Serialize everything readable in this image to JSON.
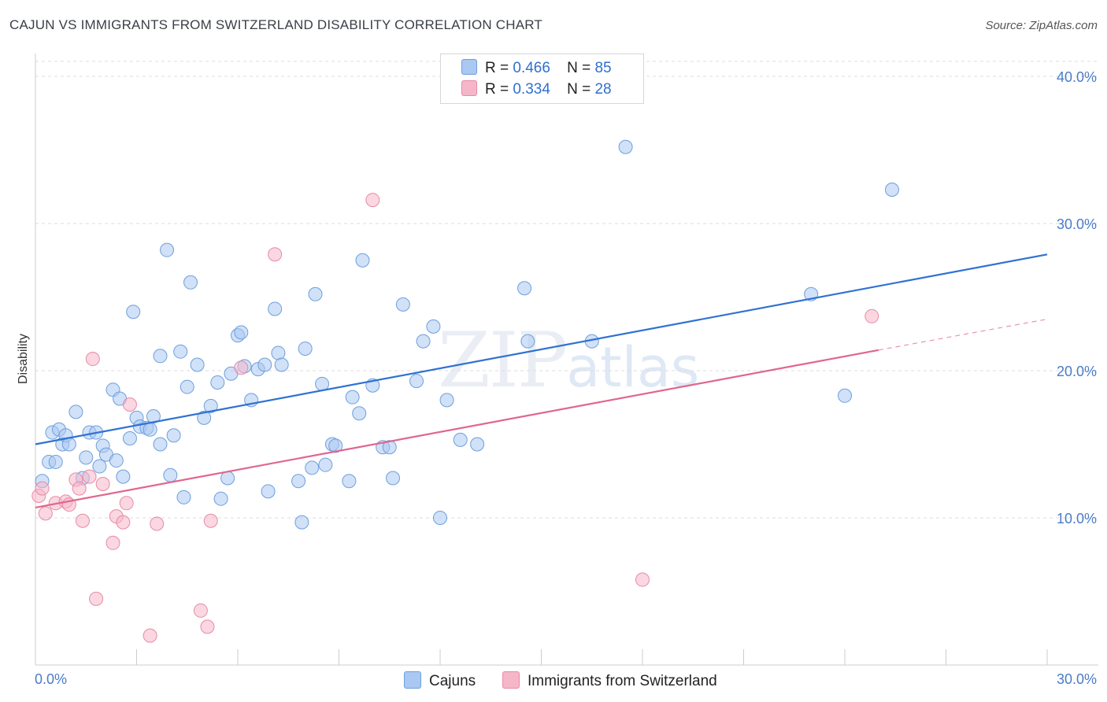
{
  "title": "CAJUN VS IMMIGRANTS FROM SWITZERLAND DISABILITY CORRELATION CHART",
  "source": "Source: ZipAtlas.com",
  "watermark": {
    "zip": "ZIP",
    "atlas": "atlas"
  },
  "legend": {
    "rows": [
      {
        "r_label": "R =",
        "r_value": "0.466",
        "n_label": "N =",
        "n_value": "85",
        "color": "#a9c8f2"
      },
      {
        "r_label": "R =",
        "r_value": "0.334",
        "n_label": "N =",
        "n_value": "28",
        "color": "#f6b6c9"
      }
    ]
  },
  "bottom_legend": [
    {
      "label": "Cajuns",
      "color": "#a9c8f2"
    },
    {
      "label": "Immigrants from Switzerland",
      "color": "#f6b6c9"
    }
  ],
  "chart_data": {
    "type": "scatter",
    "ylabel": "Disability",
    "xlabel": "",
    "xlim": [
      0,
      30
    ],
    "ylim": [
      0,
      40
    ],
    "x_tick_labels": [
      "0.0%",
      "30.0%"
    ],
    "y_ticks": [
      10,
      20,
      30,
      40
    ],
    "y_tick_labels": [
      "10.0%",
      "20.0%",
      "30.0%",
      "40.0%"
    ],
    "grid": "horizontal dashed",
    "series": [
      {
        "name": "Cajuns",
        "color": "#a9c8f2",
        "edge": "#6f9fdc",
        "trend_color": "#2f72d2",
        "trend": {
          "x0": 0,
          "y0": 15.0,
          "x1": 30,
          "y1": 27.9
        },
        "points": [
          [
            0.2,
            12.5
          ],
          [
            0.4,
            13.8
          ],
          [
            0.5,
            15.8
          ],
          [
            0.6,
            13.8
          ],
          [
            0.7,
            16.0
          ],
          [
            0.8,
            15.0
          ],
          [
            0.9,
            15.6
          ],
          [
            1.0,
            15.0
          ],
          [
            1.2,
            17.2
          ],
          [
            1.4,
            12.7
          ],
          [
            1.5,
            14.1
          ],
          [
            1.6,
            15.8
          ],
          [
            1.8,
            15.8
          ],
          [
            1.9,
            13.5
          ],
          [
            2.0,
            14.9
          ],
          [
            2.1,
            14.3
          ],
          [
            2.3,
            18.7
          ],
          [
            2.4,
            13.9
          ],
          [
            2.5,
            18.1
          ],
          [
            2.6,
            12.8
          ],
          [
            2.8,
            15.4
          ],
          [
            2.9,
            24.0
          ],
          [
            3.0,
            16.8
          ],
          [
            3.1,
            16.2
          ],
          [
            3.3,
            16.1
          ],
          [
            3.4,
            16.0
          ],
          [
            3.5,
            16.9
          ],
          [
            3.7,
            15.0
          ],
          [
            3.7,
            21.0
          ],
          [
            3.9,
            28.2
          ],
          [
            4.0,
            12.9
          ],
          [
            4.1,
            15.6
          ],
          [
            4.3,
            21.3
          ],
          [
            4.4,
            11.4
          ],
          [
            4.5,
            18.9
          ],
          [
            4.6,
            26.0
          ],
          [
            4.8,
            20.4
          ],
          [
            5.0,
            16.8
          ],
          [
            5.2,
            17.6
          ],
          [
            5.4,
            19.2
          ],
          [
            5.5,
            11.3
          ],
          [
            5.7,
            12.7
          ],
          [
            5.8,
            19.8
          ],
          [
            6.0,
            22.4
          ],
          [
            6.1,
            22.6
          ],
          [
            6.2,
            20.3
          ],
          [
            6.4,
            18.0
          ],
          [
            6.6,
            20.1
          ],
          [
            6.8,
            20.4
          ],
          [
            6.9,
            11.8
          ],
          [
            7.1,
            24.2
          ],
          [
            7.2,
            21.2
          ],
          [
            7.3,
            20.4
          ],
          [
            7.8,
            12.5
          ],
          [
            7.9,
            9.7
          ],
          [
            8.0,
            21.5
          ],
          [
            8.2,
            13.4
          ],
          [
            8.3,
            25.2
          ],
          [
            8.5,
            19.1
          ],
          [
            8.6,
            13.6
          ],
          [
            8.8,
            15.0
          ],
          [
            8.9,
            14.9
          ],
          [
            9.3,
            12.5
          ],
          [
            9.4,
            18.2
          ],
          [
            9.6,
            17.1
          ],
          [
            9.7,
            27.5
          ],
          [
            10.0,
            19.0
          ],
          [
            10.3,
            14.8
          ],
          [
            10.5,
            14.8
          ],
          [
            10.6,
            12.7
          ],
          [
            10.9,
            24.5
          ],
          [
            11.3,
            19.3
          ],
          [
            11.5,
            22.0
          ],
          [
            11.8,
            23.0
          ],
          [
            12.0,
            10.0
          ],
          [
            12.2,
            18.0
          ],
          [
            12.6,
            15.3
          ],
          [
            13.1,
            15.0
          ],
          [
            14.5,
            25.6
          ],
          [
            14.6,
            22.0
          ],
          [
            16.5,
            22.0
          ],
          [
            17.5,
            35.2
          ],
          [
            23.0,
            25.2
          ],
          [
            24.0,
            18.3
          ],
          [
            25.4,
            32.3
          ]
        ]
      },
      {
        "name": "Immigrants from Switzerland",
        "color": "#f6b6c9",
        "edge": "#e88aa8",
        "trend_color": "#e0668f",
        "trend": {
          "x0": 0,
          "y0": 10.7,
          "x1": 25.0,
          "y1": 21.4
        },
        "trend_dashed_to": {
          "x": 30,
          "y": 23.5
        },
        "points": [
          [
            0.1,
            11.5
          ],
          [
            0.2,
            12.0
          ],
          [
            0.3,
            10.3
          ],
          [
            0.6,
            11.0
          ],
          [
            0.9,
            11.1
          ],
          [
            1.0,
            10.9
          ],
          [
            1.2,
            12.6
          ],
          [
            1.3,
            12.0
          ],
          [
            1.4,
            9.8
          ],
          [
            1.6,
            12.8
          ],
          [
            1.7,
            20.8
          ],
          [
            1.8,
            4.5
          ],
          [
            2.0,
            12.3
          ],
          [
            2.3,
            8.3
          ],
          [
            2.4,
            10.1
          ],
          [
            2.6,
            9.7
          ],
          [
            2.7,
            11.0
          ],
          [
            2.8,
            17.7
          ],
          [
            3.4,
            2.0
          ],
          [
            3.6,
            9.6
          ],
          [
            4.9,
            3.7
          ],
          [
            5.1,
            2.6
          ],
          [
            5.2,
            9.8
          ],
          [
            6.1,
            20.2
          ],
          [
            7.1,
            27.9
          ],
          [
            10.0,
            31.6
          ],
          [
            18.0,
            5.8
          ],
          [
            24.8,
            23.7
          ]
        ]
      }
    ]
  }
}
